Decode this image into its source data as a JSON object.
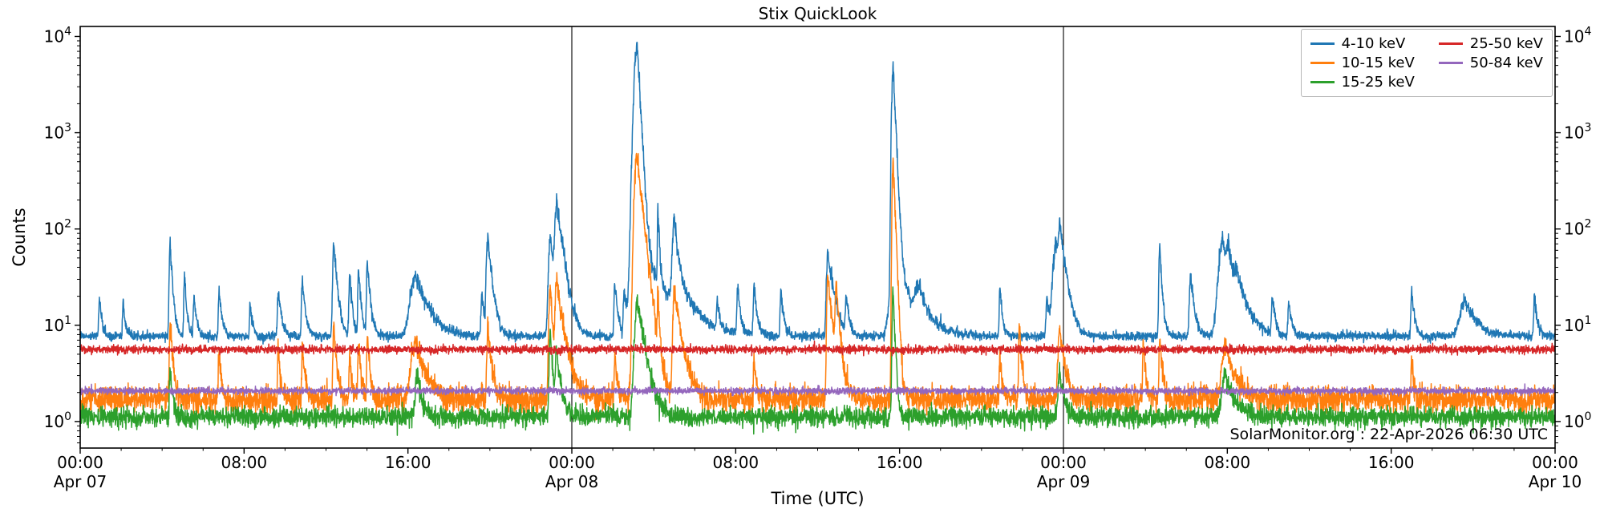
{
  "page": {
    "title": "Stix QuickLook",
    "watermark": "SolarMonitor.org : 22-Apr-2026 06:30 UTC"
  },
  "chart_data": {
    "type": "line",
    "title": "Stix QuickLook",
    "xlabel": "Time (UTC)",
    "ylabel": "Counts",
    "y_scale": "log",
    "ylim": [
      0.53,
      12700
    ],
    "y_tick_exponents": [
      0,
      1,
      2,
      3,
      4
    ],
    "x_axis": {
      "range_hours": [
        0,
        72
      ],
      "start": "Apr 07 00:00 UTC",
      "end": "Apr 10 00:00 UTC",
      "minor_step_h": 2,
      "day_lines_h": [
        24,
        48
      ],
      "ticks": [
        {
          "t": 0,
          "label": "00:00",
          "day": "Apr 07"
        },
        {
          "t": 8,
          "label": "08:00"
        },
        {
          "t": 16,
          "label": "16:00"
        },
        {
          "t": 24,
          "label": "00:00",
          "day": "Apr 08"
        },
        {
          "t": 32,
          "label": "08:00"
        },
        {
          "t": 40,
          "label": "16:00"
        },
        {
          "t": 48,
          "label": "00:00",
          "day": "Apr 09"
        },
        {
          "t": 56,
          "label": "08:00"
        },
        {
          "t": 64,
          "label": "16:00"
        },
        {
          "t": 72,
          "label": "00:00",
          "day": "Apr 10"
        }
      ]
    },
    "legend_position": "upper right",
    "grid": false,
    "series": [
      {
        "name": "4-10 keV",
        "color": "#1f77b4",
        "seed": 101,
        "baseline": 7.7,
        "noise_dex": 0.022,
        "peaks": [
          [
            0.94,
            12,
            0.04,
            0.1
          ],
          [
            2.1,
            10,
            0.04,
            0.1
          ],
          [
            4.39,
            66,
            0.05,
            0.1
          ],
          [
            5.09,
            22,
            0.04,
            0.1
          ],
          [
            5.56,
            11,
            0.05,
            0.12
          ],
          [
            6.78,
            15.5,
            0.04,
            0.12
          ],
          [
            8.3,
            9.5,
            0.04,
            0.1
          ],
          [
            9.67,
            13.6,
            0.05,
            0.15
          ],
          [
            10.85,
            22.7,
            0.05,
            0.12
          ],
          [
            12.38,
            65,
            0.06,
            0.14
          ],
          [
            13.16,
            27,
            0.05,
            0.1
          ],
          [
            13.59,
            32,
            0.04,
            0.1
          ],
          [
            14.02,
            39,
            0.05,
            0.12
          ],
          [
            16.37,
            24,
            0.3,
            0.55
          ],
          [
            19.62,
            14,
            0.06,
            0.1
          ],
          [
            19.9,
            72,
            0.08,
            0.18
          ],
          [
            22.95,
            76,
            0.1,
            0.15
          ],
          [
            23.28,
            180,
            0.12,
            0.25
          ],
          [
            26.1,
            21,
            0.05,
            0.12
          ],
          [
            26.55,
            13,
            0.05,
            0.3
          ],
          [
            27.2,
            7600,
            0.17,
            0.11
          ],
          [
            27.35,
            40,
            0.3,
            1.1
          ],
          [
            28.2,
            150,
            0.03,
            0.07
          ],
          [
            29.0,
            98,
            0.09,
            0.14
          ],
          [
            29.05,
            20,
            0.2,
            0.55
          ],
          [
            31.1,
            10,
            0.04,
            0.1
          ],
          [
            32.1,
            15.8,
            0.05,
            0.12
          ],
          [
            32.9,
            18.7,
            0.05,
            0.12
          ],
          [
            34.2,
            15.5,
            0.04,
            0.12
          ],
          [
            36.5,
            48,
            0.08,
            0.25
          ],
          [
            37.4,
            11.6,
            0.05,
            0.12
          ],
          [
            39.68,
            5100,
            0.07,
            0.09
          ],
          [
            39.75,
            30,
            0.25,
            0.8
          ],
          [
            40.9,
            12.6,
            0.15,
            0.3
          ],
          [
            44.9,
            16.4,
            0.04,
            0.1
          ],
          [
            47.2,
            12,
            0.06,
            0.12
          ],
          [
            47.65,
            62,
            0.18,
            0.2
          ],
          [
            47.82,
            80,
            0.08,
            0.25
          ],
          [
            52.7,
            55,
            0.05,
            0.1
          ],
          [
            54.2,
            26,
            0.06,
            0.15
          ],
          [
            55.8,
            69,
            0.25,
            0.1
          ],
          [
            56.05,
            58,
            0.15,
            0.3
          ],
          [
            56.45,
            17,
            0.1,
            0.5
          ],
          [
            58.2,
            11.7,
            0.05,
            0.12
          ],
          [
            59.0,
            10.4,
            0.05,
            0.12
          ],
          [
            65.0,
            14,
            0.05,
            0.12
          ],
          [
            67.6,
            10.5,
            0.3,
            0.5
          ],
          [
            71.0,
            11.5,
            0.05,
            0.12
          ]
        ]
      },
      {
        "name": "10-15 keV",
        "color": "#ff7f0e",
        "seed": 202,
        "baseline": 1.7,
        "noise_dex": 0.066,
        "peaks": [
          [
            4.39,
            9.9,
            0.04,
            0.1
          ],
          [
            6.78,
            3.5,
            0.04,
            0.1
          ],
          [
            9.67,
            3.6,
            0.04,
            0.1
          ],
          [
            10.85,
            4.4,
            0.04,
            0.1
          ],
          [
            12.38,
            7.9,
            0.05,
            0.12
          ],
          [
            13.16,
            3.0,
            0.04,
            0.1
          ],
          [
            13.59,
            5.0,
            0.04,
            0.1
          ],
          [
            14.02,
            6.6,
            0.04,
            0.1
          ],
          [
            16.37,
            4.8,
            0.25,
            0.45
          ],
          [
            19.9,
            7.9,
            0.06,
            0.15
          ],
          [
            22.95,
            24,
            0.08,
            0.1
          ],
          [
            23.25,
            25,
            0.08,
            0.3
          ],
          [
            26.1,
            3.1,
            0.04,
            0.1
          ],
          [
            27.17,
            600,
            0.13,
            0.22
          ],
          [
            28.2,
            18,
            0.03,
            0.06
          ],
          [
            29.0,
            20,
            0.08,
            0.3
          ],
          [
            32.9,
            2.8,
            0.04,
            0.1
          ],
          [
            36.5,
            30,
            0.06,
            0.2
          ],
          [
            36.9,
            20,
            0.05,
            0.15
          ],
          [
            39.68,
            550,
            0.05,
            0.08
          ],
          [
            44.9,
            3.0,
            0.04,
            0.1
          ],
          [
            45.85,
            8.0,
            0.04,
            0.1
          ],
          [
            47.82,
            7.3,
            0.1,
            0.2
          ],
          [
            51.9,
            4.7,
            0.04,
            0.1
          ],
          [
            52.7,
            6.0,
            0.04,
            0.1
          ],
          [
            55.9,
            4.3,
            0.2,
            0.4
          ],
          [
            65.0,
            2.8,
            0.04,
            0.1
          ]
        ]
      },
      {
        "name": "15-25 keV",
        "color": "#2ca02c",
        "seed": 303,
        "baseline": 1.12,
        "noise_dex": 0.05,
        "peaks": [
          [
            4.39,
            2.6,
            0.04,
            0.1
          ],
          [
            16.45,
            2.0,
            0.1,
            0.2
          ],
          [
            22.95,
            7.5,
            0.06,
            0.1
          ],
          [
            23.25,
            3.9,
            0.06,
            0.2
          ],
          [
            27.2,
            17,
            0.15,
            0.3
          ],
          [
            39.68,
            22,
            0.05,
            0.08
          ],
          [
            47.82,
            1.9,
            0.1,
            0.2
          ],
          [
            55.9,
            1.8,
            0.2,
            0.4
          ]
        ]
      },
      {
        "name": "25-50 keV",
        "color": "#d62728",
        "seed": 404,
        "baseline": 5.6,
        "noise_dex": 0.02,
        "peaks": []
      },
      {
        "name": "50-84 keV",
        "color": "#9467bd",
        "seed": 505,
        "baseline": 2.08,
        "noise_dex": 0.017,
        "peaks": []
      }
    ]
  }
}
